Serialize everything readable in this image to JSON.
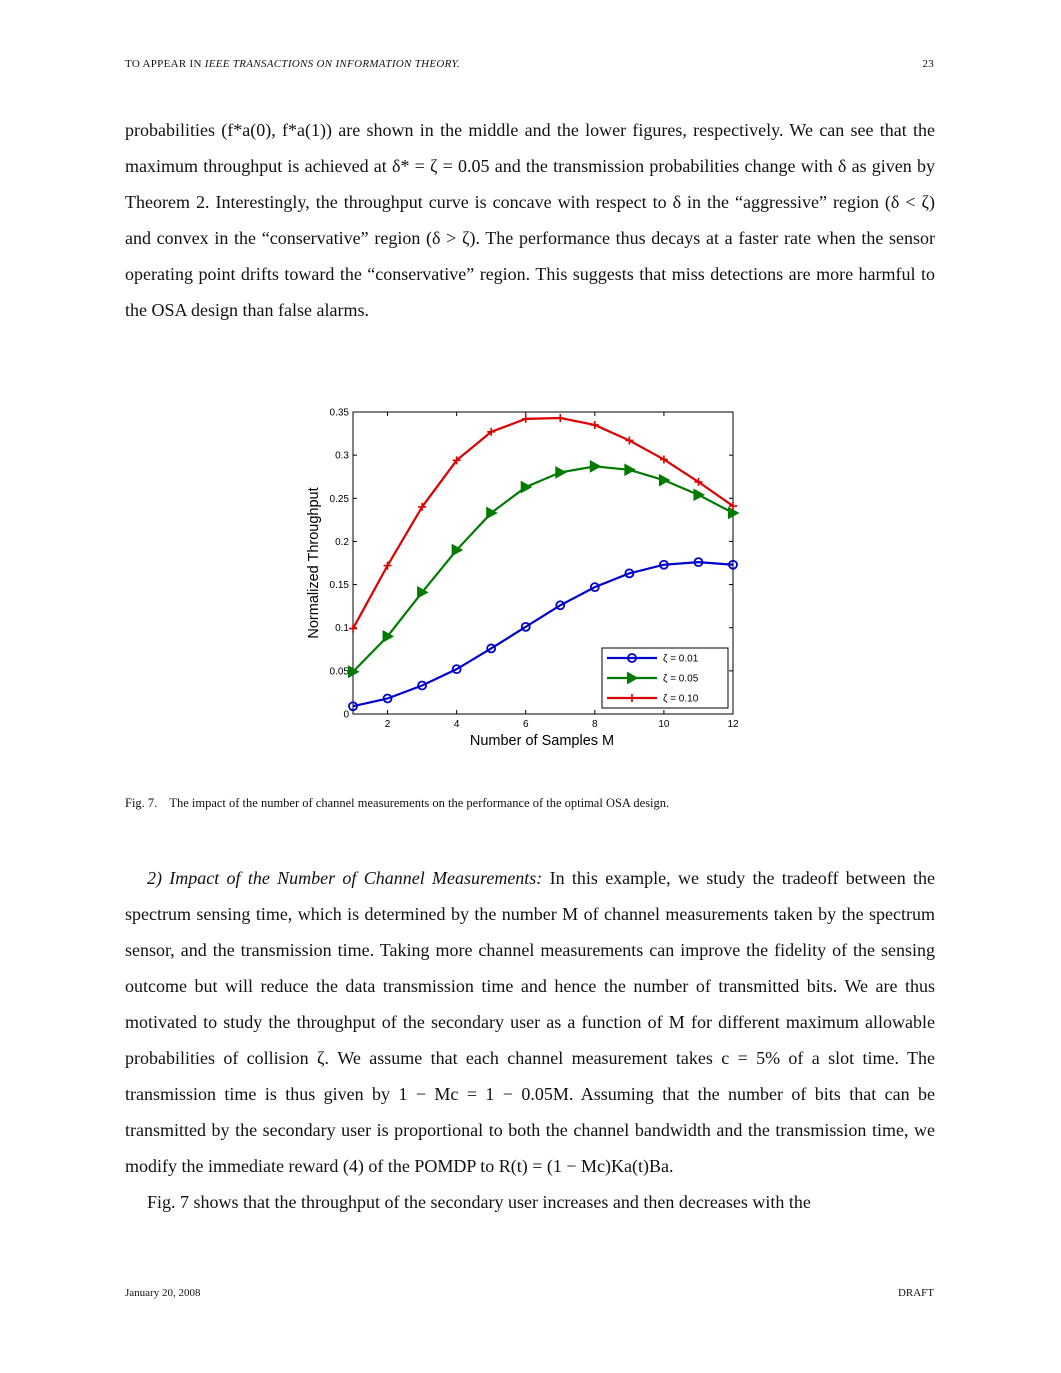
{
  "header": {
    "left_prefix": "TO APPEAR IN ",
    "left_journal": "IEEE TRANSACTIONS ON INFORMATION THEORY.",
    "page_number": "23"
  },
  "paragraph1": "probabilities (f*a(0), f*a(1)) are shown in the middle and the lower figures, respectively. We can see that the maximum throughput is achieved at δ* = ζ = 0.05 and the transmission probabilities change with δ as given by Theorem 2. Interestingly, the throughput curve is concave with respect to δ in the “aggressive” region (δ < ζ) and convex in the “conservative” region (δ > ζ). The performance thus decays at a faster rate when the sensor operating point drifts toward the “conservative” region. This suggests that miss detections are more harmful to the OSA design than false alarms.",
  "caption": {
    "label": "Fig. 7.",
    "text": "The impact of the number of channel measurements on the performance of the optimal OSA design."
  },
  "section_heading": "2) Impact of the Number of Channel Measurements:",
  "paragraph2": "In this example, we study the tradeoff between the spectrum sensing time, which is determined by the number M of channel measurements taken by the spectrum sensor, and the transmission time. Taking more channel measurements can improve the fidelity of the sensing outcome but will reduce the data transmission time and hence the number of transmitted bits. We are thus motivated to study the throughput of the secondary user as a function of M for different maximum allowable probabilities of collision ζ. We assume that each channel measurement takes c = 5% of a slot time. The transmission time is thus given by 1 − Mc = 1 − 0.05M. Assuming that the number of bits that can be transmitted by the secondary user is proportional to both the channel bandwidth and the transmission time, we modify the immediate reward (4) of the POMDP to R(t) = (1 − Mc)Ka(t)Ba.",
  "paragraph3": "Fig. 7 shows that the throughput of the secondary user increases and then decreases with the",
  "footer": {
    "date": "January 20, 2008",
    "status": "DRAFT"
  },
  "chart_data": {
    "type": "line",
    "title": "",
    "xlabel": "Number of Samples M",
    "ylabel": "Normalized Throughput",
    "xlim": [
      1,
      12
    ],
    "ylim": [
      0,
      0.35
    ],
    "xticks": [
      2,
      4,
      6,
      8,
      10,
      12
    ],
    "yticks": [
      0,
      0.05,
      0.1,
      0.15,
      0.2,
      0.25,
      0.3,
      0.35
    ],
    "ytick_labels": [
      "0",
      "0.05",
      "0.1",
      "0.15",
      "0.2",
      "0.25",
      "0.3",
      "0.35"
    ],
    "grid": false,
    "legend_position": "bottom-right",
    "x": [
      1,
      2,
      3,
      4,
      5,
      6,
      7,
      8,
      9,
      10,
      11,
      12
    ],
    "series": [
      {
        "name": "ζ = 0.01",
        "color": "#0000cc",
        "marker": "circle",
        "values": [
          0.009,
          0.018,
          0.033,
          0.052,
          0.076,
          0.101,
          0.126,
          0.147,
          0.163,
          0.173,
          0.176,
          0.173
        ]
      },
      {
        "name": "ζ = 0.05",
        "color": "#007a00",
        "marker": "triangle-right",
        "values": [
          0.049,
          0.09,
          0.141,
          0.19,
          0.233,
          0.263,
          0.28,
          0.287,
          0.283,
          0.271,
          0.254,
          0.233
        ]
      },
      {
        "name": "ζ = 0.10",
        "color": "#dd0000",
        "marker": "plus",
        "values": [
          0.099,
          0.172,
          0.24,
          0.294,
          0.327,
          0.342,
          0.343,
          0.335,
          0.317,
          0.295,
          0.269,
          0.241
        ]
      }
    ]
  }
}
